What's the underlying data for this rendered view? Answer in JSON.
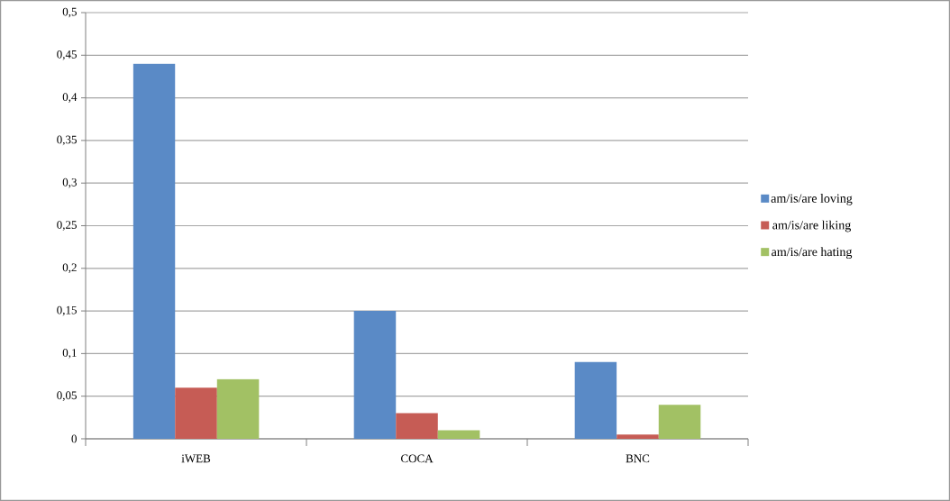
{
  "chart_data": {
    "type": "bar",
    "categories": [
      "iWEB",
      "COCA",
      "BNC"
    ],
    "series": [
      {
        "name": "am/is/are loving",
        "color": "#5a8ac6",
        "values": [
          0.44,
          0.15,
          0.09
        ]
      },
      {
        "name": "am/is/are liking",
        "color": "#c65c55",
        "values": [
          0.06,
          0.03,
          0.005
        ]
      },
      {
        "name": "am/is/are hating",
        "color": "#a2c164",
        "values": [
          0.07,
          0.01,
          0.04
        ]
      }
    ],
    "ylim": [
      0,
      0.5
    ],
    "yticks": [
      {
        "value": 0,
        "label": "0"
      },
      {
        "value": 0.05,
        "label": "0,05"
      },
      {
        "value": 0.1,
        "label": "0,1"
      },
      {
        "value": 0.15,
        "label": "0,15"
      },
      {
        "value": 0.2,
        "label": "0,2"
      },
      {
        "value": 0.25,
        "label": "0,25"
      },
      {
        "value": 0.3,
        "label": "0,3"
      },
      {
        "value": 0.35,
        "label": "0,35"
      },
      {
        "value": 0.4,
        "label": "0,4"
      },
      {
        "value": 0.45,
        "label": "0,45"
      },
      {
        "value": 0.5,
        "label": "0,5"
      }
    ],
    "grid": "y",
    "legend": "right"
  }
}
